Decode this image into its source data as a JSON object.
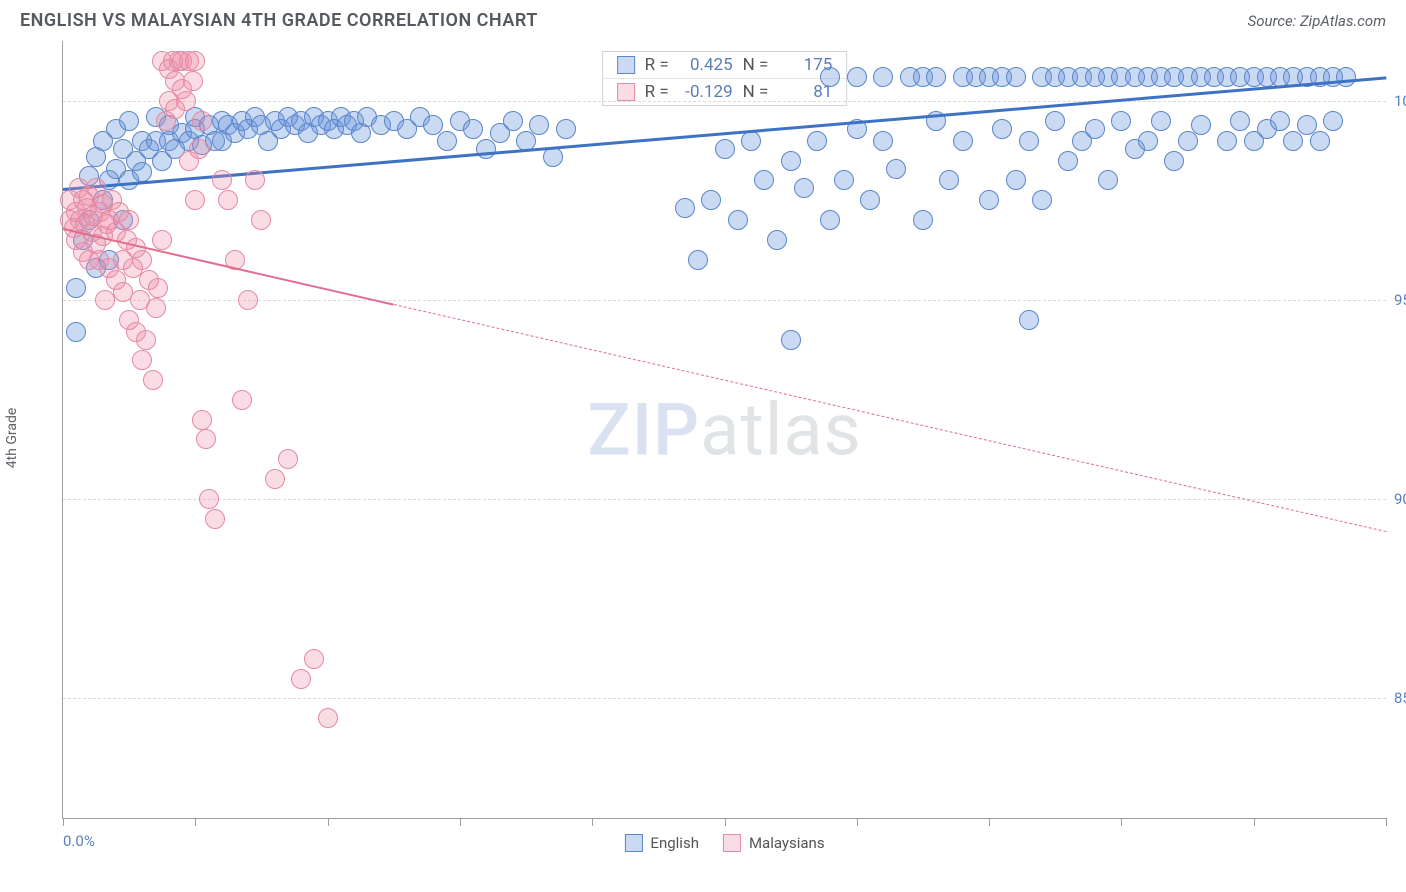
{
  "title": "ENGLISH VS MALAYSIAN 4TH GRADE CORRELATION CHART",
  "source": "Source: ZipAtlas.com",
  "y_axis_label": "4th Grade",
  "watermark": {
    "part1": "ZIP",
    "part2": "atlas"
  },
  "chart": {
    "type": "scatter",
    "background_color": "#ffffff",
    "grid_color": "#d8dbde",
    "axis_color": "#9aa0a6",
    "xlim": [
      0,
      100
    ],
    "ylim": [
      82,
      101.5
    ],
    "x_ticks": [
      0,
      10,
      20,
      30,
      40,
      50,
      60,
      70,
      80,
      90,
      100
    ],
    "x_range_labels": {
      "min": "0.0%",
      "max": "100.0%"
    },
    "y_ticks": [
      {
        "v": 100,
        "label": "100.0%"
      },
      {
        "v": 95,
        "label": "95.0%"
      },
      {
        "v": 90,
        "label": "90.0%"
      },
      {
        "v": 85,
        "label": "85.0%"
      }
    ],
    "series": [
      {
        "name": "English",
        "legend_label": "English",
        "color_fill": "rgba(106,150,220,0.35)",
        "color_stroke": "#5b86c9",
        "marker_radius": 10,
        "stats": {
          "R_label": "R =",
          "R": "0.425",
          "N_label": "N =",
          "N": "175"
        },
        "trendline": {
          "color": "#3d72c4",
          "width": 3,
          "x1": 0,
          "y1": 97.8,
          "x2": 100,
          "y2": 100.6,
          "solid_until_x": 100
        },
        "points": [
          [
            1,
            94.2
          ],
          [
            1,
            95.3
          ],
          [
            1.5,
            96.5
          ],
          [
            2,
            97.0
          ],
          [
            2,
            98.1
          ],
          [
            2.5,
            95.8
          ],
          [
            2.5,
            98.6
          ],
          [
            3,
            97.5
          ],
          [
            3,
            99.0
          ],
          [
            3.5,
            96.0
          ],
          [
            3.5,
            98.0
          ],
          [
            4,
            98.3
          ],
          [
            4,
            99.3
          ],
          [
            4.5,
            97.0
          ],
          [
            4.5,
            98.8
          ],
          [
            5,
            98.0
          ],
          [
            5,
            99.5
          ],
          [
            5.5,
            98.5
          ],
          [
            6,
            98.2
          ],
          [
            6,
            99.0
          ],
          [
            6.5,
            98.8
          ],
          [
            7,
            99.0
          ],
          [
            7,
            99.6
          ],
          [
            7.5,
            98.5
          ],
          [
            8,
            99.0
          ],
          [
            8,
            99.4
          ],
          [
            8.5,
            98.8
          ],
          [
            9,
            99.2
          ],
          [
            9.5,
            99.0
          ],
          [
            10,
            99.3
          ],
          [
            10,
            99.6
          ],
          [
            10.5,
            98.9
          ],
          [
            11,
            99.4
          ],
          [
            11.5,
            99.0
          ],
          [
            12,
            99.5
          ],
          [
            12,
            99.0
          ],
          [
            12.5,
            99.4
          ],
          [
            13,
            99.2
          ],
          [
            13.5,
            99.5
          ],
          [
            14,
            99.3
          ],
          [
            14.5,
            99.6
          ],
          [
            15,
            99.4
          ],
          [
            15.5,
            99.0
          ],
          [
            16,
            99.5
          ],
          [
            16.5,
            99.3
          ],
          [
            17,
            99.6
          ],
          [
            17.5,
            99.4
          ],
          [
            18,
            99.5
          ],
          [
            18.5,
            99.2
          ],
          [
            19,
            99.6
          ],
          [
            19.5,
            99.4
          ],
          [
            20,
            99.5
          ],
          [
            20.5,
            99.3
          ],
          [
            21,
            99.6
          ],
          [
            21.5,
            99.4
          ],
          [
            22,
            99.5
          ],
          [
            22.5,
            99.2
          ],
          [
            23,
            99.6
          ],
          [
            24,
            99.4
          ],
          [
            25,
            99.5
          ],
          [
            26,
            99.3
          ],
          [
            27,
            99.6
          ],
          [
            28,
            99.4
          ],
          [
            29,
            99.0
          ],
          [
            30,
            99.5
          ],
          [
            31,
            99.3
          ],
          [
            32,
            98.8
          ],
          [
            33,
            99.2
          ],
          [
            34,
            99.5
          ],
          [
            35,
            99.0
          ],
          [
            36,
            99.4
          ],
          [
            37,
            98.6
          ],
          [
            38,
            99.3
          ],
          [
            47,
            97.3
          ],
          [
            48,
            96.0
          ],
          [
            49,
            97.5
          ],
          [
            50,
            98.8
          ],
          [
            51,
            97.0
          ],
          [
            52,
            99.0
          ],
          [
            53,
            98.0
          ],
          [
            54,
            96.5
          ],
          [
            55,
            98.5
          ],
          [
            55,
            94.0
          ],
          [
            56,
            97.8
          ],
          [
            57,
            99.0
          ],
          [
            58,
            97.0
          ],
          [
            58,
            100.6
          ],
          [
            59,
            98.0
          ],
          [
            60,
            99.3
          ],
          [
            60,
            100.6
          ],
          [
            61,
            97.5
          ],
          [
            62,
            99.0
          ],
          [
            62,
            100.6
          ],
          [
            63,
            98.3
          ],
          [
            64,
            100.6
          ],
          [
            65,
            97.0
          ],
          [
            65,
            100.6
          ],
          [
            66,
            99.5
          ],
          [
            66,
            100.6
          ],
          [
            67,
            98.0
          ],
          [
            68,
            100.6
          ],
          [
            68,
            99.0
          ],
          [
            69,
            100.6
          ],
          [
            70,
            97.5
          ],
          [
            70,
            100.6
          ],
          [
            71,
            99.3
          ],
          [
            71,
            100.6
          ],
          [
            72,
            98.0
          ],
          [
            72,
            100.6
          ],
          [
            73,
            99.0
          ],
          [
            73,
            94.5
          ],
          [
            74,
            100.6
          ],
          [
            74,
            97.5
          ],
          [
            75,
            99.5
          ],
          [
            75,
            100.6
          ],
          [
            76,
            98.5
          ],
          [
            76,
            100.6
          ],
          [
            77,
            99.0
          ],
          [
            77,
            100.6
          ],
          [
            78,
            100.6
          ],
          [
            78,
            99.3
          ],
          [
            79,
            98.0
          ],
          [
            79,
            100.6
          ],
          [
            80,
            99.5
          ],
          [
            80,
            100.6
          ],
          [
            81,
            100.6
          ],
          [
            81,
            98.8
          ],
          [
            82,
            100.6
          ],
          [
            82,
            99.0
          ],
          [
            83,
            100.6
          ],
          [
            83,
            99.5
          ],
          [
            84,
            100.6
          ],
          [
            84,
            98.5
          ],
          [
            85,
            100.6
          ],
          [
            85,
            99.0
          ],
          [
            86,
            100.6
          ],
          [
            86,
            99.4
          ],
          [
            87,
            100.6
          ],
          [
            88,
            100.6
          ],
          [
            88,
            99.0
          ],
          [
            89,
            100.6
          ],
          [
            89,
            99.5
          ],
          [
            90,
            100.6
          ],
          [
            90,
            99.0
          ],
          [
            91,
            100.6
          ],
          [
            91,
            99.3
          ],
          [
            92,
            100.6
          ],
          [
            92,
            99.5
          ],
          [
            93,
            100.6
          ],
          [
            93,
            99.0
          ],
          [
            94,
            100.6
          ],
          [
            94,
            99.4
          ],
          [
            95,
            100.6
          ],
          [
            95,
            99.0
          ],
          [
            96,
            100.6
          ],
          [
            96,
            99.5
          ],
          [
            97,
            100.6
          ]
        ]
      },
      {
        "name": "Malaysians",
        "legend_label": "Malaysians",
        "color_fill": "rgba(240,140,165,0.30)",
        "color_stroke": "#e48aa3",
        "marker_radius": 10,
        "stats": {
          "R_label": "R =",
          "R": "-0.129",
          "N_label": "N =",
          "N": "81"
        },
        "trendline": {
          "color": "#e06e8e",
          "width": 2,
          "x1": 0,
          "y1": 96.8,
          "x2": 100,
          "y2": 89.2,
          "solid_until_x": 25
        },
        "points": [
          [
            0.5,
            97.5
          ],
          [
            0.5,
            97.0
          ],
          [
            0.8,
            96.8
          ],
          [
            1,
            97.2
          ],
          [
            1,
            96.5
          ],
          [
            1.2,
            97.8
          ],
          [
            1.3,
            97.0
          ],
          [
            1.5,
            96.2
          ],
          [
            1.5,
            97.5
          ],
          [
            1.7,
            96.9
          ],
          [
            1.8,
            97.3
          ],
          [
            2,
            96.0
          ],
          [
            2,
            97.6
          ],
          [
            2.2,
            96.7
          ],
          [
            2.3,
            97.1
          ],
          [
            2.5,
            96.4
          ],
          [
            2.5,
            97.8
          ],
          [
            2.7,
            96.0
          ],
          [
            2.8,
            97.2
          ],
          [
            3,
            96.6
          ],
          [
            3,
            97.4
          ],
          [
            3.2,
            95.0
          ],
          [
            3.3,
            96.9
          ],
          [
            3.5,
            97.0
          ],
          [
            3.5,
            95.8
          ],
          [
            3.7,
            97.5
          ],
          [
            4,
            95.5
          ],
          [
            4,
            96.7
          ],
          [
            4.2,
            97.2
          ],
          [
            4.5,
            96.0
          ],
          [
            4.5,
            95.2
          ],
          [
            4.8,
            96.5
          ],
          [
            5,
            97.0
          ],
          [
            5,
            94.5
          ],
          [
            5.3,
            95.8
          ],
          [
            5.5,
            94.2
          ],
          [
            5.5,
            96.3
          ],
          [
            5.8,
            95.0
          ],
          [
            6,
            93.5
          ],
          [
            6,
            96.0
          ],
          [
            6.3,
            94.0
          ],
          [
            6.5,
            95.5
          ],
          [
            6.8,
            93.0
          ],
          [
            7,
            94.8
          ],
          [
            7.2,
            95.3
          ],
          [
            7.5,
            96.5
          ],
          [
            7.5,
            101.0
          ],
          [
            7.8,
            99.5
          ],
          [
            8,
            100.0
          ],
          [
            8,
            100.8
          ],
          [
            8.3,
            101.0
          ],
          [
            8.5,
            100.5
          ],
          [
            8.5,
            99.8
          ],
          [
            8.8,
            101.0
          ],
          [
            9,
            100.3
          ],
          [
            9,
            101.0
          ],
          [
            9.3,
            100.0
          ],
          [
            9.5,
            101.0
          ],
          [
            9.5,
            98.5
          ],
          [
            9.8,
            100.5
          ],
          [
            10,
            101.0
          ],
          [
            10,
            97.5
          ],
          [
            10.3,
            98.8
          ],
          [
            10.5,
            99.5
          ],
          [
            10.5,
            92.0
          ],
          [
            10.8,
            91.5
          ],
          [
            11,
            90.0
          ],
          [
            11.5,
            89.5
          ],
          [
            12,
            98.0
          ],
          [
            12.5,
            97.5
          ],
          [
            13,
            96.0
          ],
          [
            13.5,
            92.5
          ],
          [
            14,
            95.0
          ],
          [
            14.5,
            98.0
          ],
          [
            15,
            97.0
          ],
          [
            16,
            90.5
          ],
          [
            17,
            91.0
          ],
          [
            18,
            85.5
          ],
          [
            19,
            86.0
          ],
          [
            20,
            84.5
          ]
        ]
      }
    ]
  }
}
